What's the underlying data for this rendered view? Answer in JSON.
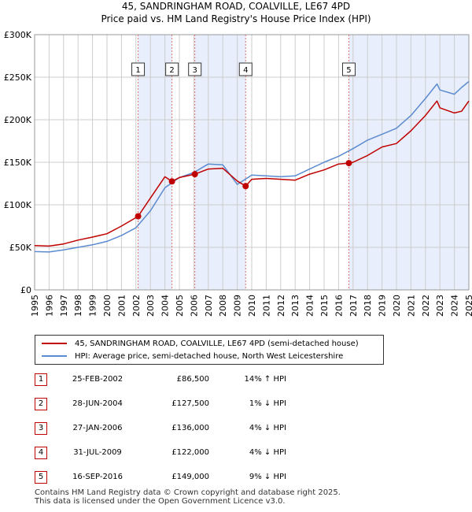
{
  "header": {
    "title": "45, SANDRINGHAM ROAD, COALVILLE, LE67 4PD",
    "subtitle": "Price paid vs. HM Land Registry's House Price Index (HPI)"
  },
  "colors": {
    "property": "#c00000",
    "hpi": "#5b8bd0",
    "band": "#e8eefb",
    "grid": "#cccccc",
    "vline": "#e07070"
  },
  "legend": {
    "property": "45, SANDRINGHAM ROAD, COALVILLE, LE67 4PD (semi-detached house)",
    "hpi": "HPI: Average price, semi-detached house, North West Leicestershire"
  },
  "transactions": [
    {
      "num": "1",
      "date": "25-FEB-2002",
      "price": "£86,500",
      "hpi": "14% ↑ HPI"
    },
    {
      "num": "2",
      "date": "28-JUN-2004",
      "price": "£127,500",
      "hpi": "1% ↓ HPI"
    },
    {
      "num": "3",
      "date": "27-JAN-2006",
      "price": "£136,000",
      "hpi": "4% ↓ HPI"
    },
    {
      "num": "4",
      "date": "31-JUL-2009",
      "price": "£122,000",
      "hpi": "4% ↓ HPI"
    },
    {
      "num": "5",
      "date": "16-SEP-2016",
      "price": "£149,000",
      "hpi": "9% ↓ HPI"
    }
  ],
  "footer": {
    "line1": "Contains HM Land Registry data © Crown copyright and database right 2025.",
    "line2": "This data is licensed under the Open Government Licence v3.0."
  },
  "chart_data": {
    "type": "line",
    "title": "45, SANDRINGHAM ROAD, COALVILLE, LE67 4PD",
    "subtitle": "Price paid vs. HM Land Registry's House Price Index (HPI)",
    "xlim": [
      1995,
      2025
    ],
    "ylim": [
      0,
      300000
    ],
    "x_ticks": [
      "1995",
      "1996",
      "1997",
      "1998",
      "1999",
      "2000",
      "2001",
      "2002",
      "2003",
      "2004",
      "2005",
      "2006",
      "2007",
      "2008",
      "2009",
      "2010",
      "2011",
      "2012",
      "2013",
      "2014",
      "2015",
      "2016",
      "2017",
      "2018",
      "2019",
      "2020",
      "2021",
      "2022",
      "2023",
      "2024",
      "2025"
    ],
    "y_ticks": [
      {
        "value": 0,
        "label": "£0"
      },
      {
        "value": 50000,
        "label": "£50K"
      },
      {
        "value": 100000,
        "label": "£100K"
      },
      {
        "value": 150000,
        "label": "£150K"
      },
      {
        "value": 200000,
        "label": "£200K"
      },
      {
        "value": 250000,
        "label": "£250K"
      },
      {
        "value": 300000,
        "label": "£300K"
      }
    ],
    "grid": true,
    "legend_position": "below",
    "series": [
      {
        "name": "45, SANDRINGHAM ROAD, COALVILLE, LE67 4PD (semi-detached house)",
        "color": "#c00000",
        "points": [
          [
            1995,
            52000
          ],
          [
            1996,
            51500
          ],
          [
            1997,
            54000
          ],
          [
            1998,
            58500
          ],
          [
            1999,
            62000
          ],
          [
            2000,
            66000
          ],
          [
            2001,
            75000
          ],
          [
            2002.15,
            86500
          ],
          [
            2003,
            108000
          ],
          [
            2004,
            133000
          ],
          [
            2004.49,
            127500
          ],
          [
            2005,
            132000
          ],
          [
            2006.07,
            136000
          ],
          [
            2007,
            142000
          ],
          [
            2008,
            143000
          ],
          [
            2009,
            128000
          ],
          [
            2009.58,
            122000
          ],
          [
            2010,
            130000
          ],
          [
            2011,
            131000
          ],
          [
            2012,
            130000
          ],
          [
            2013,
            129000
          ],
          [
            2014,
            136000
          ],
          [
            2015,
            141000
          ],
          [
            2016,
            148000
          ],
          [
            2016.71,
            149000
          ],
          [
            2017,
            150000
          ],
          [
            2018,
            158000
          ],
          [
            2019,
            168000
          ],
          [
            2020,
            172000
          ],
          [
            2021,
            187000
          ],
          [
            2022,
            205000
          ],
          [
            2022.8,
            222000
          ],
          [
            2023,
            214000
          ],
          [
            2024,
            208000
          ],
          [
            2024.5,
            210000
          ],
          [
            2025,
            222000
          ]
        ]
      },
      {
        "name": "HPI: Average price, semi-detached house, North West Leicestershire",
        "color": "#5b8bd0",
        "points": [
          [
            1995,
            45000
          ],
          [
            1996,
            44500
          ],
          [
            1997,
            47000
          ],
          [
            1998,
            50000
          ],
          [
            1999,
            53000
          ],
          [
            2000,
            57000
          ],
          [
            2001,
            64000
          ],
          [
            2002,
            73000
          ],
          [
            2003,
            93000
          ],
          [
            2004,
            120000
          ],
          [
            2005,
            132000
          ],
          [
            2006,
            138000
          ],
          [
            2007,
            148000
          ],
          [
            2008,
            147000
          ],
          [
            2009,
            124000
          ],
          [
            2010,
            135000
          ],
          [
            2011,
            134000
          ],
          [
            2012,
            133000
          ],
          [
            2013,
            134000
          ],
          [
            2014,
            142000
          ],
          [
            2015,
            150000
          ],
          [
            2016,
            157000
          ],
          [
            2017,
            166000
          ],
          [
            2018,
            176000
          ],
          [
            2019,
            183000
          ],
          [
            2020,
            190000
          ],
          [
            2021,
            205000
          ],
          [
            2022,
            225000
          ],
          [
            2022.8,
            242000
          ],
          [
            2023,
            235000
          ],
          [
            2024,
            230000
          ],
          [
            2024.5,
            238000
          ],
          [
            2025,
            245000
          ]
        ]
      }
    ],
    "sales": [
      {
        "num": "1",
        "x": 2002.15,
        "y": 86500
      },
      {
        "num": "2",
        "x": 2004.49,
        "y": 127500
      },
      {
        "num": "3",
        "x": 2006.07,
        "y": 136000
      },
      {
        "num": "4",
        "x": 2009.58,
        "y": 122000
      },
      {
        "num": "5",
        "x": 2016.71,
        "y": 149000
      }
    ],
    "shaded_spans": [
      [
        2002.15,
        2004.49
      ],
      [
        2006.07,
        2009.58
      ],
      [
        2016.71,
        2025
      ]
    ]
  }
}
